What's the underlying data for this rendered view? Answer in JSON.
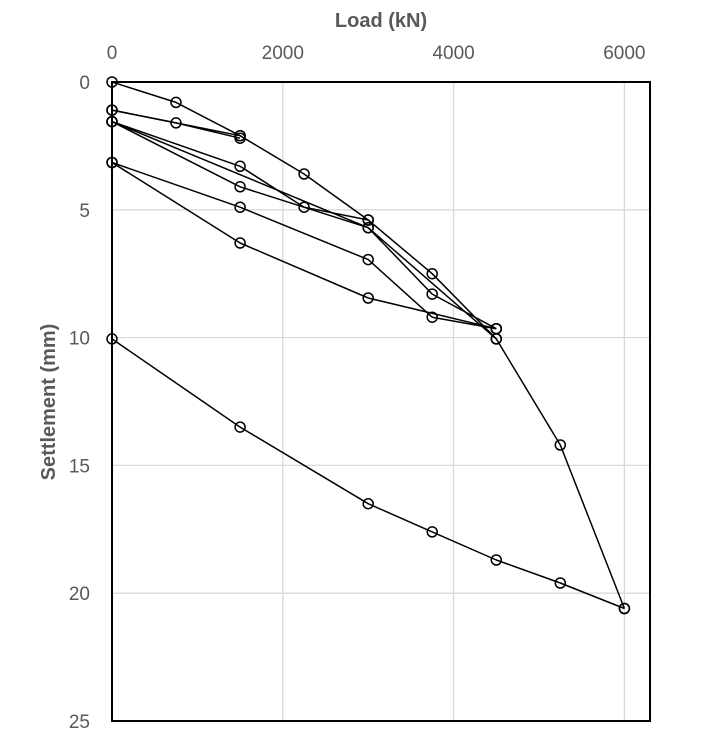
{
  "chart_data": {
    "type": "scatter",
    "title": "",
    "xlabel": "Load (kN)",
    "ylabel": "Settlement (mm)",
    "xlim": [
      0,
      6300
    ],
    "ylim": [
      0,
      25
    ],
    "y_inverted": true,
    "x_axis_position": "top",
    "xticks": [
      "0",
      "2000",
      "4000",
      "6000"
    ],
    "yticks": [
      "0",
      "5",
      "10",
      "15",
      "20",
      "25"
    ],
    "grid": true,
    "legend": "none",
    "marker": "open-circle",
    "color": "#000000",
    "series": [
      {
        "points": [
          [
            0,
            0
          ],
          [
            750,
            0.8
          ],
          [
            1500,
            2.1
          ],
          [
            2250,
            3.6
          ],
          [
            3000,
            5.4
          ],
          [
            3750,
            7.5
          ],
          [
            4500,
            10.05
          ],
          [
            5250,
            14.2
          ],
          [
            6000,
            20.6
          ]
        ]
      },
      {
        "points": [
          [
            6000,
            20.6
          ],
          [
            5250,
            19.6
          ],
          [
            4500,
            18.7
          ],
          [
            3750,
            17.6
          ],
          [
            3000,
            16.5
          ],
          [
            1500,
            13.5
          ],
          [
            0,
            10.05
          ]
        ]
      },
      {
        "points": [
          [
            0,
            1.1
          ],
          [
            750,
            1.6
          ],
          [
            1500,
            2.2
          ]
        ]
      },
      {
        "points": [
          [
            0,
            1.1
          ],
          [
            1500,
            2.1
          ]
        ]
      },
      {
        "points": [
          [
            0,
            1.55
          ],
          [
            1500,
            3.3
          ],
          [
            2250,
            4.9
          ],
          [
            3000,
            5.4
          ]
        ]
      },
      {
        "points": [
          [
            0,
            1.55
          ],
          [
            1500,
            4.1
          ],
          [
            3000,
            5.7
          ],
          [
            3750,
            8.3
          ],
          [
            4500,
            9.65
          ]
        ]
      },
      {
        "points": [
          [
            0,
            1.55
          ],
          [
            3000,
            5.7
          ],
          [
            4500,
            10.05
          ]
        ]
      },
      {
        "points": [
          [
            0,
            3.15
          ],
          [
            1500,
            4.9
          ],
          [
            3000,
            6.95
          ],
          [
            3750,
            9.2
          ],
          [
            4500,
            9.65
          ]
        ]
      },
      {
        "points": [
          [
            0,
            3.15
          ],
          [
            1500,
            6.3
          ],
          [
            3000,
            8.45
          ],
          [
            4500,
            9.65
          ]
        ]
      }
    ]
  }
}
